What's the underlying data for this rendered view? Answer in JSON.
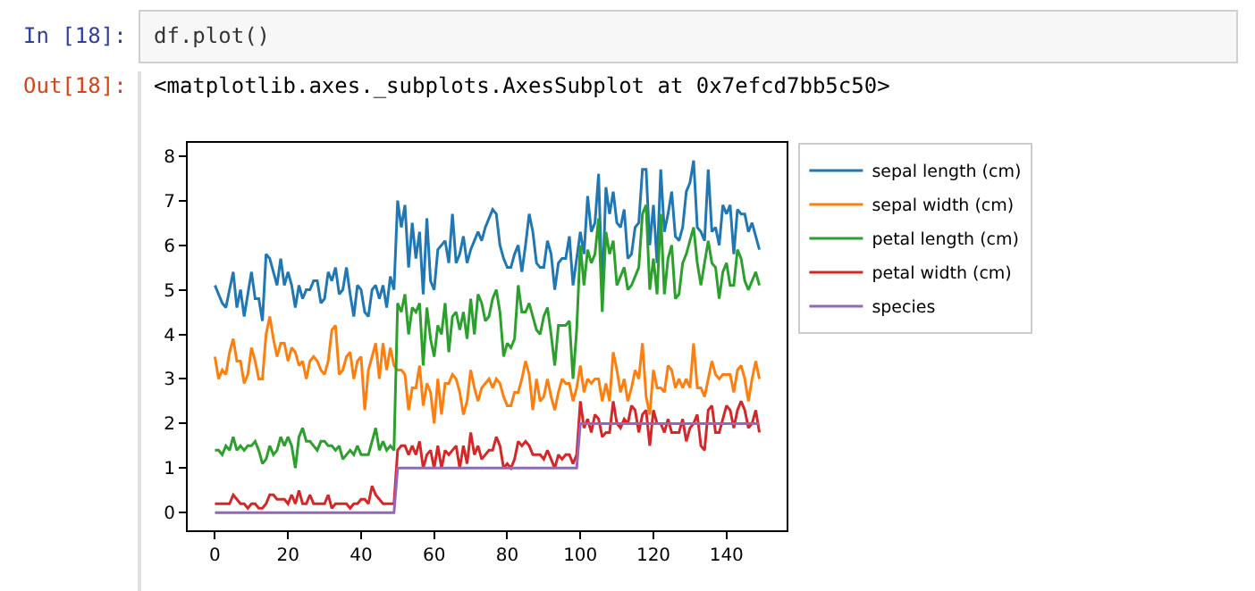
{
  "chart_data": {
    "type": "line",
    "annotations": [
      "In [18]:",
      "df.plot()",
      "Out[18]:",
      "<matplotlib.axes._subplots.AxesSubplot at 0x7efcd7bb5c50>"
    ],
    "x": [
      0,
      1,
      2,
      3,
      4,
      5,
      6,
      7,
      8,
      9,
      10,
      11,
      12,
      13,
      14,
      15,
      16,
      17,
      18,
      19,
      20,
      21,
      22,
      23,
      24,
      25,
      26,
      27,
      28,
      29,
      30,
      31,
      32,
      33,
      34,
      35,
      36,
      37,
      38,
      39,
      40,
      41,
      42,
      43,
      44,
      45,
      46,
      47,
      48,
      49,
      50,
      51,
      52,
      53,
      54,
      55,
      56,
      57,
      58,
      59,
      60,
      61,
      62,
      63,
      64,
      65,
      66,
      67,
      68,
      69,
      70,
      71,
      72,
      73,
      74,
      75,
      76,
      77,
      78,
      79,
      80,
      81,
      82,
      83,
      84,
      85,
      86,
      87,
      88,
      89,
      90,
      91,
      92,
      93,
      94,
      95,
      96,
      97,
      98,
      99,
      100,
      101,
      102,
      103,
      104,
      105,
      106,
      107,
      108,
      109,
      110,
      111,
      112,
      113,
      114,
      115,
      116,
      117,
      118,
      119,
      120,
      121,
      122,
      123,
      124,
      125,
      126,
      127,
      128,
      129,
      130,
      131,
      132,
      133,
      134,
      135,
      136,
      137,
      138,
      139,
      140,
      141,
      142,
      143,
      144,
      145,
      146,
      147,
      148,
      149
    ],
    "xlim": [
      -7.45,
      156.45
    ],
    "xticks": [
      0,
      20,
      40,
      60,
      80,
      100,
      120,
      140
    ],
    "ylim": [
      -0.395,
      8.295
    ],
    "yticks": [
      0,
      1,
      2,
      3,
      4,
      5,
      6,
      7,
      8
    ],
    "grid": false,
    "legend": "right",
    "marker": "none",
    "line_style": "solid",
    "series": [
      {
        "name": "sepal length (cm)",
        "color": "#1f77b4",
        "values": [
          5.1,
          4.9,
          4.7,
          4.6,
          5.0,
          5.4,
          4.6,
          5.0,
          4.4,
          4.9,
          5.4,
          4.8,
          4.8,
          4.3,
          5.8,
          5.7,
          5.4,
          5.1,
          5.7,
          5.1,
          5.4,
          5.1,
          4.6,
          5.1,
          4.8,
          5.0,
          5.0,
          5.2,
          5.2,
          4.7,
          4.8,
          5.4,
          5.2,
          5.5,
          4.9,
          5.0,
          5.5,
          4.9,
          4.4,
          5.1,
          5.0,
          4.5,
          4.4,
          5.0,
          5.1,
          4.8,
          5.1,
          4.6,
          5.3,
          5.0,
          7.0,
          6.4,
          6.9,
          5.5,
          6.5,
          5.7,
          6.3,
          4.9,
          6.6,
          5.2,
          5.0,
          5.9,
          6.0,
          6.1,
          5.6,
          6.7,
          5.6,
          5.8,
          6.2,
          5.6,
          5.9,
          6.1,
          6.3,
          6.1,
          6.4,
          6.6,
          6.8,
          6.7,
          6.0,
          5.7,
          5.5,
          5.5,
          5.8,
          6.0,
          5.4,
          6.0,
          6.7,
          6.3,
          5.6,
          5.5,
          5.5,
          6.1,
          5.8,
          5.0,
          5.6,
          5.7,
          5.7,
          6.2,
          5.1,
          5.7,
          6.3,
          5.8,
          7.1,
          6.3,
          6.5,
          7.6,
          4.9,
          7.3,
          6.7,
          7.2,
          6.5,
          6.4,
          6.8,
          5.7,
          5.8,
          6.4,
          6.5,
          7.7,
          7.7,
          6.0,
          6.9,
          5.6,
          7.7,
          6.3,
          6.7,
          7.2,
          6.2,
          6.1,
          6.4,
          7.2,
          7.4,
          7.9,
          6.4,
          6.3,
          6.1,
          7.7,
          6.3,
          6.4,
          6.0,
          6.9,
          6.7,
          6.9,
          5.8,
          6.8,
          6.7,
          6.7,
          6.3,
          6.5,
          6.2,
          5.9
        ]
      },
      {
        "name": "sepal width (cm)",
        "color": "#ff7f0e",
        "values": [
          3.5,
          3.0,
          3.2,
          3.1,
          3.6,
          3.9,
          3.4,
          3.4,
          2.9,
          3.1,
          3.7,
          3.4,
          3.0,
          3.0,
          4.0,
          4.4,
          3.9,
          3.5,
          3.8,
          3.8,
          3.4,
          3.7,
          3.6,
          3.3,
          3.4,
          3.0,
          3.4,
          3.5,
          3.4,
          3.2,
          3.1,
          3.4,
          4.1,
          4.2,
          3.1,
          3.2,
          3.5,
          3.6,
          3.0,
          3.4,
          3.5,
          2.3,
          3.2,
          3.5,
          3.8,
          3.0,
          3.8,
          3.2,
          3.7,
          3.3,
          3.2,
          3.2,
          3.1,
          2.3,
          2.8,
          2.8,
          3.3,
          2.4,
          2.9,
          2.7,
          2.0,
          3.0,
          2.2,
          2.9,
          2.9,
          3.1,
          3.0,
          2.7,
          2.2,
          2.5,
          3.2,
          2.8,
          2.5,
          2.8,
          2.9,
          3.0,
          2.8,
          3.0,
          2.9,
          2.6,
          2.4,
          2.4,
          2.7,
          2.7,
          3.0,
          3.4,
          3.1,
          2.3,
          3.0,
          2.5,
          2.6,
          3.0,
          2.6,
          2.3,
          2.7,
          3.0,
          2.9,
          2.9,
          2.5,
          2.8,
          3.3,
          2.7,
          3.0,
          2.9,
          3.0,
          3.0,
          2.5,
          2.9,
          2.5,
          3.6,
          3.2,
          2.7,
          3.0,
          2.5,
          2.8,
          3.2,
          3.0,
          3.8,
          2.6,
          2.2,
          3.2,
          2.8,
          2.8,
          2.7,
          3.3,
          3.2,
          2.8,
          3.0,
          2.8,
          3.0,
          2.8,
          3.8,
          2.8,
          2.8,
          2.6,
          3.0,
          3.4,
          3.1,
          3.0,
          3.1,
          3.1,
          3.1,
          2.7,
          3.2,
          3.3,
          3.0,
          2.5,
          3.0,
          3.4,
          3.0
        ]
      },
      {
        "name": "petal length (cm)",
        "color": "#2ca02c",
        "values": [
          1.4,
          1.4,
          1.3,
          1.5,
          1.4,
          1.7,
          1.4,
          1.5,
          1.4,
          1.5,
          1.5,
          1.6,
          1.4,
          1.1,
          1.2,
          1.5,
          1.3,
          1.4,
          1.7,
          1.5,
          1.7,
          1.5,
          1.0,
          1.7,
          1.9,
          1.6,
          1.6,
          1.5,
          1.4,
          1.6,
          1.6,
          1.5,
          1.5,
          1.4,
          1.5,
          1.2,
          1.3,
          1.4,
          1.3,
          1.5,
          1.3,
          1.3,
          1.3,
          1.6,
          1.9,
          1.4,
          1.6,
          1.4,
          1.5,
          1.4,
          4.7,
          4.5,
          4.9,
          4.0,
          4.6,
          4.5,
          4.7,
          3.3,
          4.6,
          3.9,
          3.5,
          4.2,
          4.0,
          4.7,
          3.6,
          4.4,
          4.5,
          4.1,
          4.5,
          3.9,
          4.8,
          4.0,
          4.9,
          4.7,
          4.3,
          4.4,
          4.8,
          5.0,
          4.5,
          3.5,
          3.8,
          3.7,
          3.9,
          5.1,
          4.5,
          4.5,
          4.7,
          4.4,
          4.1,
          4.0,
          4.4,
          4.6,
          4.0,
          3.3,
          4.2,
          4.2,
          4.2,
          4.3,
          3.0,
          4.1,
          6.0,
          5.1,
          5.9,
          5.6,
          5.8,
          6.6,
          4.5,
          6.3,
          5.8,
          6.1,
          5.1,
          5.3,
          5.5,
          5.0,
          5.1,
          5.3,
          5.5,
          6.7,
          6.9,
          5.0,
          5.7,
          4.9,
          6.7,
          4.9,
          5.7,
          6.0,
          4.8,
          4.9,
          5.6,
          5.8,
          6.1,
          6.4,
          5.6,
          5.1,
          5.6,
          6.1,
          5.6,
          5.5,
          4.8,
          5.4,
          5.6,
          5.1,
          5.1,
          5.9,
          5.7,
          5.2,
          5.0,
          5.2,
          5.4,
          5.1
        ]
      },
      {
        "name": "petal width (cm)",
        "color": "#d62728",
        "values": [
          0.2,
          0.2,
          0.2,
          0.2,
          0.2,
          0.4,
          0.3,
          0.2,
          0.2,
          0.1,
          0.2,
          0.2,
          0.1,
          0.1,
          0.2,
          0.4,
          0.4,
          0.3,
          0.3,
          0.3,
          0.2,
          0.4,
          0.2,
          0.5,
          0.2,
          0.2,
          0.4,
          0.2,
          0.2,
          0.2,
          0.2,
          0.4,
          0.1,
          0.2,
          0.2,
          0.2,
          0.2,
          0.1,
          0.2,
          0.2,
          0.3,
          0.3,
          0.2,
          0.6,
          0.4,
          0.3,
          0.2,
          0.2,
          0.2,
          0.2,
          1.4,
          1.5,
          1.5,
          1.3,
          1.5,
          1.3,
          1.6,
          1.0,
          1.3,
          1.4,
          1.0,
          1.5,
          1.0,
          1.4,
          1.3,
          1.4,
          1.5,
          1.0,
          1.5,
          1.1,
          1.8,
          1.3,
          1.5,
          1.2,
          1.3,
          1.4,
          1.4,
          1.7,
          1.5,
          1.0,
          1.1,
          1.0,
          1.2,
          1.6,
          1.5,
          1.6,
          1.5,
          1.3,
          1.3,
          1.3,
          1.2,
          1.4,
          1.2,
          1.0,
          1.3,
          1.2,
          1.3,
          1.3,
          1.1,
          1.3,
          2.5,
          1.9,
          2.1,
          1.8,
          2.2,
          2.1,
          1.7,
          1.8,
          1.8,
          2.5,
          2.0,
          1.9,
          2.1,
          2.0,
          2.4,
          2.3,
          1.8,
          2.2,
          2.3,
          1.5,
          2.3,
          2.0,
          2.0,
          1.8,
          2.1,
          1.8,
          1.8,
          1.8,
          2.1,
          1.6,
          1.9,
          2.0,
          2.2,
          1.5,
          1.4,
          2.3,
          2.4,
          1.8,
          1.8,
          2.1,
          2.4,
          2.3,
          1.9,
          2.3,
          2.5,
          2.3,
          1.9,
          2.0,
          2.3,
          1.8
        ]
      },
      {
        "name": "species",
        "color": "#9467bd",
        "values": [
          0,
          0,
          0,
          0,
          0,
          0,
          0,
          0,
          0,
          0,
          0,
          0,
          0,
          0,
          0,
          0,
          0,
          0,
          0,
          0,
          0,
          0,
          0,
          0,
          0,
          0,
          0,
          0,
          0,
          0,
          0,
          0,
          0,
          0,
          0,
          0,
          0,
          0,
          0,
          0,
          0,
          0,
          0,
          0,
          0,
          0,
          0,
          0,
          0,
          0,
          1,
          1,
          1,
          1,
          1,
          1,
          1,
          1,
          1,
          1,
          1,
          1,
          1,
          1,
          1,
          1,
          1,
          1,
          1,
          1,
          1,
          1,
          1,
          1,
          1,
          1,
          1,
          1,
          1,
          1,
          1,
          1,
          1,
          1,
          1,
          1,
          1,
          1,
          1,
          1,
          1,
          1,
          1,
          1,
          1,
          1,
          1,
          1,
          1,
          1,
          2,
          2,
          2,
          2,
          2,
          2,
          2,
          2,
          2,
          2,
          2,
          2,
          2,
          2,
          2,
          2,
          2,
          2,
          2,
          2,
          2,
          2,
          2,
          2,
          2,
          2,
          2,
          2,
          2,
          2,
          2,
          2,
          2,
          2,
          2,
          2,
          2,
          2,
          2,
          2,
          2,
          2,
          2,
          2,
          2,
          2,
          2,
          2,
          2,
          2
        ]
      }
    ]
  }
}
